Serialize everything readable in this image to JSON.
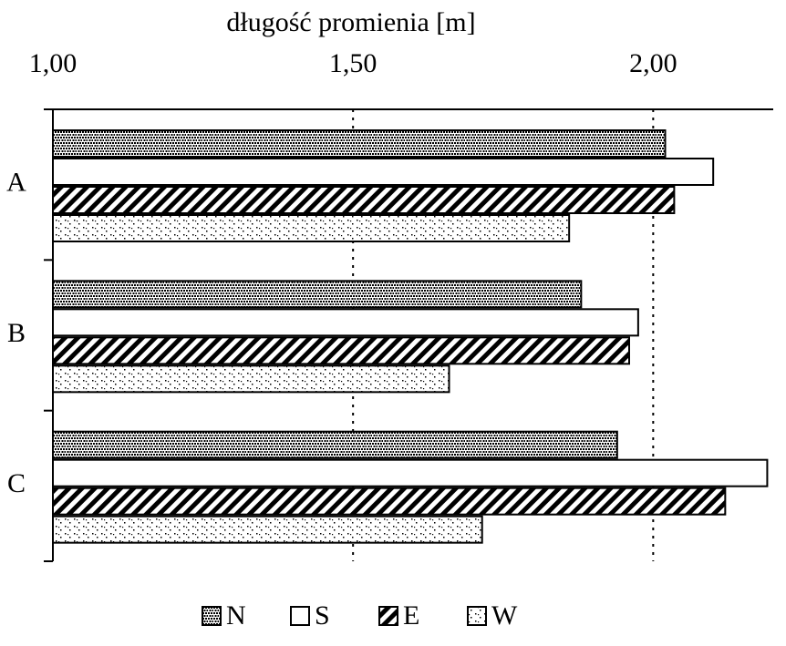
{
  "chart_data": {
    "type": "hbar",
    "title": "długość promienia [m]",
    "categories": [
      "A",
      "B",
      "C"
    ],
    "series": [
      {
        "name": "N",
        "color": "#000000",
        "pattern": "dense-dots",
        "values": [
          2.02,
          1.88,
          1.94
        ]
      },
      {
        "name": "S",
        "color": "#000000",
        "pattern": "none",
        "values": [
          2.1,
          1.975,
          2.19
        ]
      },
      {
        "name": "E",
        "color": "#000000",
        "pattern": "stripes",
        "values": [
          2.035,
          1.96,
          2.12
        ]
      },
      {
        "name": "W",
        "color": "#000000",
        "pattern": "sparse-dots",
        "values": [
          1.86,
          1.66,
          1.715
        ]
      }
    ],
    "xlim": [
      1,
      2.2
    ],
    "xticks": [
      {
        "value": 1,
        "label": "1,00"
      },
      {
        "value": 1.5,
        "label": "1,50"
      },
      {
        "value": 2,
        "label": "2,00"
      }
    ],
    "grid": true,
    "legend": "bottom"
  }
}
